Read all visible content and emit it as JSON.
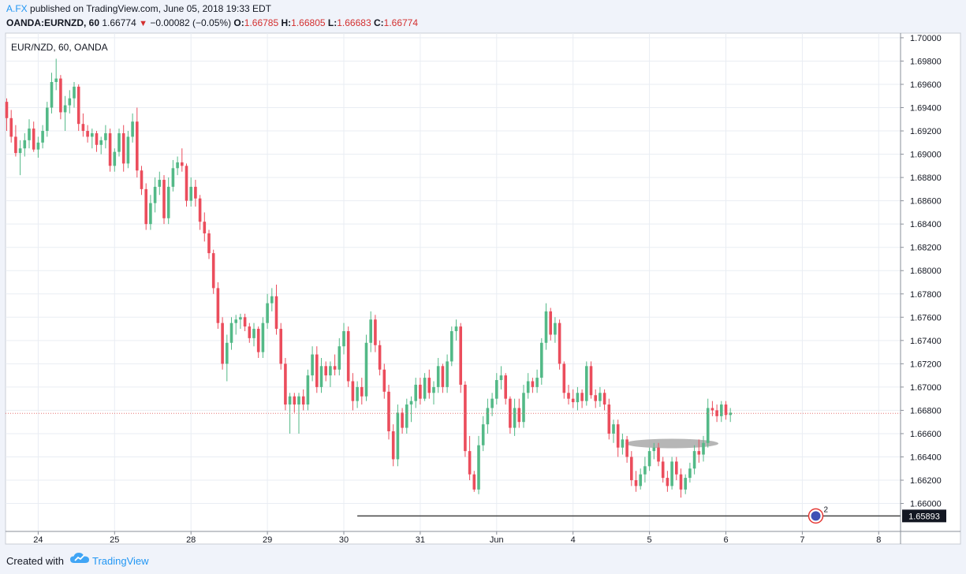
{
  "header": {
    "author": "A.FX",
    "published_text": "published on TradingView.com, June 05, 2018 19:33 EDT",
    "symbol": "OANDA:EURNZD, 60",
    "last": "1.66774",
    "change": "−0.00082 (−0.05%)",
    "o_label": "O:",
    "o_val": "1.66785",
    "h_label": "H:",
    "h_val": "1.66805",
    "l_label": "L:",
    "l_val": "1.66683",
    "c_label": "C:",
    "c_val": "1.66774"
  },
  "chart_label": "EUR/NZD, 60, OANDA",
  "footer": {
    "created_with": "Created with",
    "brand": "TradingView"
  },
  "colors": {
    "up": "#53b987",
    "down": "#eb4d5c",
    "grid": "#e9edf3",
    "text": "#131722",
    "background": "#ffffff"
  },
  "chart_data": {
    "type": "candlestick",
    "title": "EUR/NZD, 60, OANDA",
    "x_tick_labels": [
      {
        "label": "24",
        "bar": 7
      },
      {
        "label": "25",
        "bar": 24
      },
      {
        "label": "28",
        "bar": 41
      },
      {
        "label": "29",
        "bar": 58
      },
      {
        "label": "30",
        "bar": 75
      },
      {
        "label": "31",
        "bar": 92
      },
      {
        "label": "Jun",
        "bar": 109
      },
      {
        "label": "4",
        "bar": 126
      },
      {
        "label": "5",
        "bar": 143
      },
      {
        "label": "6",
        "bar": 160
      },
      {
        "label": "7",
        "bar": 177
      },
      {
        "label": "8",
        "bar": 194
      }
    ],
    "y_ticks": [
      "1.70000",
      "1.69800",
      "1.69600",
      "1.69400",
      "1.69200",
      "1.69000",
      "1.68800",
      "1.68600",
      "1.68400",
      "1.68200",
      "1.68000",
      "1.67800",
      "1.67600",
      "1.67400",
      "1.67200",
      "1.67000",
      "1.66800",
      "1.66600",
      "1.66400",
      "1.66200",
      "1.66000"
    ],
    "ylim": [
      1.6576,
      1.7004
    ],
    "grid": true,
    "current_price": 1.66774,
    "horizontal_line": {
      "price": 1.65893,
      "label": "1.65893",
      "start_bar": 78
    },
    "highlight_ellipse": {
      "center_bar": 148,
      "price": 1.66515
    },
    "event_marker": {
      "count": "2",
      "bar": 180
    },
    "candles": [
      [
        1.6945,
        1.6948,
        1.692,
        1.6931
      ],
      [
        1.6931,
        1.6938,
        1.691,
        1.6915
      ],
      [
        1.6915,
        1.6925,
        1.6898,
        1.6901
      ],
      [
        1.6901,
        1.6912,
        1.6882,
        1.6905
      ],
      [
        1.6905,
        1.6918,
        1.6898,
        1.6912
      ],
      [
        1.6912,
        1.693,
        1.6905,
        1.6922
      ],
      [
        1.6922,
        1.6928,
        1.6902,
        1.6904
      ],
      [
        1.6904,
        1.6915,
        1.6897,
        1.691
      ],
      [
        1.691,
        1.6925,
        1.6905,
        1.692
      ],
      [
        1.692,
        1.6945,
        1.6915,
        1.694
      ],
      [
        1.694,
        1.697,
        1.6935,
        1.6962
      ],
      [
        1.6962,
        1.6982,
        1.6955,
        1.6965
      ],
      [
        1.6965,
        1.6968,
        1.693,
        1.6936
      ],
      [
        1.6936,
        1.695,
        1.692,
        1.6942
      ],
      [
        1.6942,
        1.6955,
        1.6935,
        1.6948
      ],
      [
        1.6948,
        1.6962,
        1.694,
        1.6958
      ],
      [
        1.6958,
        1.696,
        1.692,
        1.6926
      ],
      [
        1.6926,
        1.6935,
        1.6915,
        1.692
      ],
      [
        1.692,
        1.6925,
        1.691,
        1.6915
      ],
      [
        1.6915,
        1.6922,
        1.6905,
        1.6918
      ],
      [
        1.6918,
        1.692,
        1.6902,
        1.6908
      ],
      [
        1.6908,
        1.6915,
        1.69,
        1.6912
      ],
      [
        1.6912,
        1.6925,
        1.6905,
        1.6918
      ],
      [
        1.6918,
        1.6922,
        1.6885,
        1.689
      ],
      [
        1.689,
        1.6905,
        1.6885,
        1.6902
      ],
      [
        1.6902,
        1.6922,
        1.6898,
        1.6918
      ],
      [
        1.6918,
        1.6925,
        1.6885,
        1.6892
      ],
      [
        1.6892,
        1.692,
        1.6888,
        1.6915
      ],
      [
        1.6915,
        1.6935,
        1.691,
        1.6928
      ],
      [
        1.6928,
        1.694,
        1.688,
        1.6886
      ],
      [
        1.6886,
        1.689,
        1.6865,
        1.687
      ],
      [
        1.687,
        1.6875,
        1.6835,
        1.684
      ],
      [
        1.684,
        1.6865,
        1.6835,
        1.6858
      ],
      [
        1.6858,
        1.688,
        1.685,
        1.6872
      ],
      [
        1.6872,
        1.6885,
        1.6865,
        1.6878
      ],
      [
        1.6878,
        1.6882,
        1.684,
        1.6845
      ],
      [
        1.6845,
        1.688,
        1.684,
        1.6872
      ],
      [
        1.6872,
        1.6895,
        1.6868,
        1.6888
      ],
      [
        1.6888,
        1.6898,
        1.6882,
        1.6893
      ],
      [
        1.6893,
        1.6905,
        1.6885,
        1.689
      ],
      [
        1.689,
        1.6892,
        1.6855,
        1.686
      ],
      [
        1.686,
        1.688,
        1.6855,
        1.6872
      ],
      [
        1.6872,
        1.6878,
        1.6855,
        1.6862
      ],
      [
        1.6862,
        1.6865,
        1.6835,
        1.6842
      ],
      [
        1.6842,
        1.685,
        1.6825,
        1.6832
      ],
      [
        1.6832,
        1.6835,
        1.681,
        1.6815
      ],
      [
        1.6815,
        1.6818,
        1.678,
        1.6785
      ],
      [
        1.6785,
        1.679,
        1.675,
        1.6755
      ],
      [
        1.6755,
        1.676,
        1.6715,
        1.672
      ],
      [
        1.672,
        1.6745,
        1.6705,
        1.6738
      ],
      [
        1.6738,
        1.676,
        1.6732,
        1.6755
      ],
      [
        1.6755,
        1.6762,
        1.6745,
        1.6758
      ],
      [
        1.6758,
        1.6763,
        1.675,
        1.676
      ],
      [
        1.676,
        1.6763,
        1.6748,
        1.6752
      ],
      [
        1.6752,
        1.6755,
        1.6738,
        1.6742
      ],
      [
        1.6742,
        1.6755,
        1.6735,
        1.675
      ],
      [
        1.675,
        1.6752,
        1.6725,
        1.673
      ],
      [
        1.673,
        1.676,
        1.6725,
        1.6755
      ],
      [
        1.6755,
        1.678,
        1.675,
        1.6772
      ],
      [
        1.6772,
        1.6785,
        1.6765,
        1.6778
      ],
      [
        1.6778,
        1.6788,
        1.6745,
        1.675
      ],
      [
        1.675,
        1.6755,
        1.6715,
        1.672
      ],
      [
        1.672,
        1.6725,
        1.668,
        1.6685
      ],
      [
        1.6685,
        1.6695,
        1.666,
        1.6692
      ],
      [
        1.6692,
        1.6695,
        1.6678,
        1.6685
      ],
      [
        1.6685,
        1.6695,
        1.666,
        1.6692
      ],
      [
        1.6692,
        1.6698,
        1.668,
        1.6685
      ],
      [
        1.6685,
        1.6715,
        1.668,
        1.671
      ],
      [
        1.671,
        1.6735,
        1.6705,
        1.6728
      ],
      [
        1.6728,
        1.6735,
        1.6695,
        1.67
      ],
      [
        1.67,
        1.6725,
        1.6695,
        1.6718
      ],
      [
        1.6718,
        1.6722,
        1.6705,
        1.671
      ],
      [
        1.671,
        1.6722,
        1.67,
        1.6718
      ],
      [
        1.6718,
        1.6728,
        1.671,
        1.6715
      ],
      [
        1.6715,
        1.6742,
        1.671,
        1.6735
      ],
      [
        1.6735,
        1.6755,
        1.6728,
        1.6748
      ],
      [
        1.6748,
        1.6752,
        1.67,
        1.6705
      ],
      [
        1.6705,
        1.6712,
        1.668,
        1.6688
      ],
      [
        1.6688,
        1.6705,
        1.6682,
        1.67
      ],
      [
        1.67,
        1.6708,
        1.6685,
        1.6692
      ],
      [
        1.6692,
        1.6745,
        1.6688,
        1.6738
      ],
      [
        1.6738,
        1.6765,
        1.673,
        1.6758
      ],
      [
        1.6758,
        1.6762,
        1.673,
        1.6736
      ],
      [
        1.6736,
        1.674,
        1.671,
        1.6715
      ],
      [
        1.6715,
        1.672,
        1.669,
        1.6696
      ],
      [
        1.6696,
        1.6702,
        1.6655,
        1.6662
      ],
      [
        1.6662,
        1.6668,
        1.6632,
        1.6638
      ],
      [
        1.6638,
        1.6685,
        1.6632,
        1.6678
      ],
      [
        1.6678,
        1.6682,
        1.666,
        1.6665
      ],
      [
        1.6665,
        1.669,
        1.666,
        1.6685
      ],
      [
        1.6685,
        1.6692,
        1.667,
        1.6688
      ],
      [
        1.6688,
        1.6708,
        1.6682,
        1.6702
      ],
      [
        1.6702,
        1.6708,
        1.6685,
        1.669
      ],
      [
        1.669,
        1.6712,
        1.6688,
        1.6708
      ],
      [
        1.6708,
        1.6715,
        1.669,
        1.6695
      ],
      [
        1.6695,
        1.6705,
        1.6685,
        1.67
      ],
      [
        1.67,
        1.6725,
        1.6695,
        1.6718
      ],
      [
        1.6718,
        1.672,
        1.6695,
        1.67
      ],
      [
        1.67,
        1.6728,
        1.6695,
        1.6722
      ],
      [
        1.6722,
        1.6752,
        1.6718,
        1.6748
      ],
      [
        1.6748,
        1.6758,
        1.674,
        1.6752
      ],
      [
        1.6752,
        1.6755,
        1.6695,
        1.6702
      ],
      [
        1.6702,
        1.6705,
        1.664,
        1.6645
      ],
      [
        1.6645,
        1.6658,
        1.662,
        1.6625
      ],
      [
        1.6625,
        1.6628,
        1.661,
        1.6612
      ],
      [
        1.6612,
        1.6658,
        1.6608,
        1.665
      ],
      [
        1.665,
        1.6675,
        1.6645,
        1.6668
      ],
      [
        1.6668,
        1.669,
        1.666,
        1.6682
      ],
      [
        1.6682,
        1.6695,
        1.6675,
        1.669
      ],
      [
        1.669,
        1.6712,
        1.6685,
        1.6706
      ],
      [
        1.6706,
        1.6718,
        1.6698,
        1.671
      ],
      [
        1.671,
        1.6712,
        1.6685,
        1.669
      ],
      [
        1.669,
        1.6692,
        1.666,
        1.6665
      ],
      [
        1.6665,
        1.669,
        1.6658,
        1.6682
      ],
      [
        1.6682,
        1.669,
        1.6665,
        1.667
      ],
      [
        1.667,
        1.6702,
        1.6665,
        1.6695
      ],
      [
        1.6695,
        1.6712,
        1.669,
        1.6705
      ],
      [
        1.6705,
        1.6708,
        1.6695,
        1.67
      ],
      [
        1.67,
        1.6715,
        1.6695,
        1.6708
      ],
      [
        1.6708,
        1.6742,
        1.6702,
        1.6738
      ],
      [
        1.6738,
        1.6772,
        1.6732,
        1.6765
      ],
      [
        1.6765,
        1.6768,
        1.674,
        1.6745
      ],
      [
        1.6745,
        1.676,
        1.6738,
        1.6755
      ],
      [
        1.6755,
        1.6758,
        1.6715,
        1.672
      ],
      [
        1.672,
        1.6722,
        1.669,
        1.6695
      ],
      [
        1.6695,
        1.6702,
        1.6685,
        1.669
      ],
      [
        1.669,
        1.6698,
        1.6682,
        1.6687
      ],
      [
        1.6687,
        1.67,
        1.668,
        1.6695
      ],
      [
        1.6695,
        1.6698,
        1.6682,
        1.6688
      ],
      [
        1.6688,
        1.6722,
        1.6684,
        1.6718
      ],
      [
        1.6718,
        1.6722,
        1.669,
        1.6693
      ],
      [
        1.6693,
        1.6698,
        1.6682,
        1.6688
      ],
      [
        1.6688,
        1.67,
        1.6683,
        1.6695
      ],
      [
        1.6695,
        1.6698,
        1.668,
        1.6685
      ],
      [
        1.6685,
        1.669,
        1.6655,
        1.666
      ],
      [
        1.666,
        1.6672,
        1.6652,
        1.6668
      ],
      [
        1.6668,
        1.6672,
        1.664,
        1.6648
      ],
      [
        1.6648,
        1.666,
        1.6642,
        1.6655
      ],
      [
        1.6655,
        1.6658,
        1.6635,
        1.664
      ],
      [
        1.664,
        1.6645,
        1.6615,
        1.662
      ],
      [
        1.662,
        1.6628,
        1.661,
        1.6615
      ],
      [
        1.6615,
        1.663,
        1.6612,
        1.6625
      ],
      [
        1.6625,
        1.664,
        1.6618,
        1.6632
      ],
      [
        1.6632,
        1.6648,
        1.6628,
        1.6645
      ],
      [
        1.6645,
        1.6652,
        1.6638,
        1.6648
      ],
      [
        1.6648,
        1.6652,
        1.6632,
        1.6636
      ],
      [
        1.6636,
        1.664,
        1.6618,
        1.6622
      ],
      [
        1.6622,
        1.6628,
        1.661,
        1.6615
      ],
      [
        1.6615,
        1.664,
        1.6612,
        1.6636
      ],
      [
        1.6636,
        1.664,
        1.662,
        1.6625
      ],
      [
        1.6625,
        1.663,
        1.6605,
        1.6612
      ],
      [
        1.6612,
        1.6625,
        1.6608,
        1.6622
      ],
      [
        1.6622,
        1.6635,
        1.6618,
        1.663
      ],
      [
        1.663,
        1.665,
        1.6625,
        1.6645
      ],
      [
        1.6645,
        1.6655,
        1.6635,
        1.6642
      ],
      [
        1.6642,
        1.6658,
        1.6636,
        1.6652
      ],
      [
        1.6652,
        1.669,
        1.6648,
        1.6682
      ],
      [
        1.6682,
        1.6688,
        1.6675,
        1.668
      ],
      [
        1.668,
        1.6685,
        1.667,
        1.6675
      ],
      [
        1.6675,
        1.6688,
        1.667,
        1.6685
      ],
      [
        1.6685,
        1.6688,
        1.6672,
        1.6676
      ],
      [
        1.6676,
        1.6682,
        1.667,
        1.6678
      ]
    ]
  }
}
